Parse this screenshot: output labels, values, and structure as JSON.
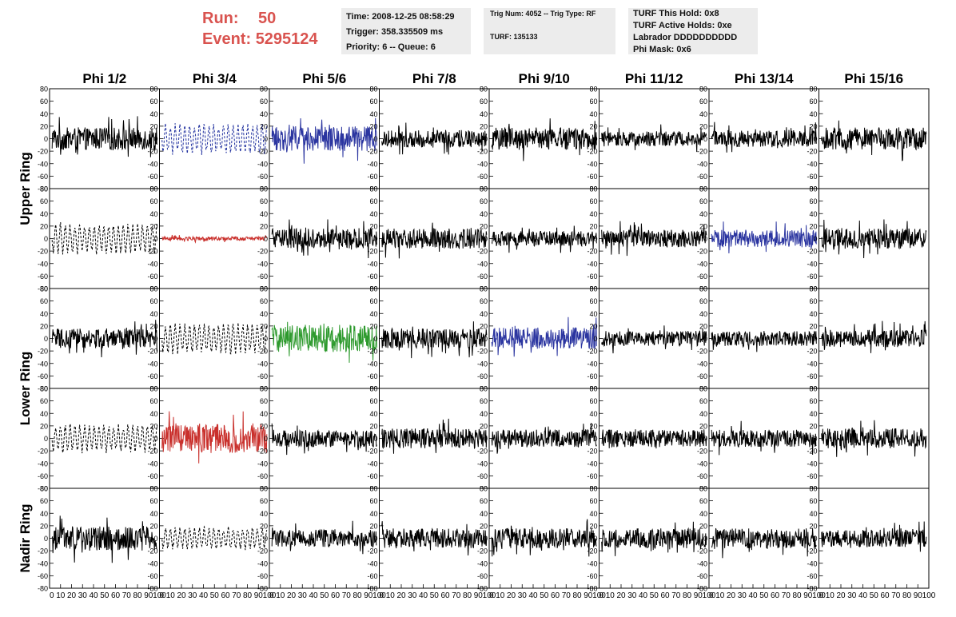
{
  "header": {
    "run_label": "Run:",
    "run_value": "50",
    "event_label": "Event:",
    "event_value": "5295124"
  },
  "info_time": {
    "time": "Time: 2008-12-25 08:58:29",
    "trigger": "Trigger: 358.335509 ms",
    "priority": "Priority: 6 -- Queue: 6"
  },
  "info_trig": {
    "trig_line": "Trig Num: 4052 -- Trig Type: RF",
    "turf_line": "TURF: 135133"
  },
  "info_turf": {
    "hold": "TURF This Hold: 0x8",
    "active": "TURF Active Holds: 0xe",
    "labrador": "Labrador DDDDDDDDDD",
    "phi_mask": "Phi Mask: 0x6"
  },
  "chart_data": {
    "type": "line",
    "columns": [
      "Phi 1/2",
      "Phi 3/4",
      "Phi 5/6",
      "Phi 7/8",
      "Phi 9/10",
      "Phi 11/12",
      "Phi 13/14",
      "Phi 15/16"
    ],
    "ring_labels": [
      "Upper Ring",
      "Lower Ring",
      "Nadir Ring"
    ],
    "rows": 5,
    "xlim": [
      0,
      100
    ],
    "ylim": [
      -80,
      80
    ],
    "y_ticks": [
      "80",
      "60",
      "40",
      "20",
      "0",
      "-20",
      "-40",
      "-60",
      "-80"
    ],
    "x_ticks": [
      "0",
      "10",
      "20",
      "30",
      "40",
      "50",
      "60",
      "70",
      "80",
      "90",
      "100"
    ],
    "series_colors": {
      "black": "#000000",
      "dashed": "#000000",
      "dashed_blue": "#1f2f9e",
      "blue": "#2b35a0",
      "red": "#c9302c",
      "green": "#2e9a2e"
    },
    "panels": [
      {
        "row": 0,
        "col": 0,
        "style": "black",
        "amplitude": 18
      },
      {
        "row": 0,
        "col": 1,
        "style": "dashed_blue",
        "amplitude": 22
      },
      {
        "row": 0,
        "col": 2,
        "style": "blue",
        "amplitude": 20
      },
      {
        "row": 0,
        "col": 3,
        "style": "black",
        "amplitude": 14
      },
      {
        "row": 0,
        "col": 4,
        "style": "black",
        "amplitude": 18
      },
      {
        "row": 0,
        "col": 5,
        "style": "black",
        "amplitude": 12
      },
      {
        "row": 0,
        "col": 6,
        "style": "black",
        "amplitude": 14
      },
      {
        "row": 0,
        "col": 7,
        "style": "black",
        "amplitude": 18
      },
      {
        "row": 1,
        "col": 0,
        "style": "dashed",
        "amplitude": 22
      },
      {
        "row": 1,
        "col": 1,
        "style": "red",
        "amplitude": 3
      },
      {
        "row": 1,
        "col": 2,
        "style": "black",
        "amplitude": 16
      },
      {
        "row": 1,
        "col": 3,
        "style": "black",
        "amplitude": 16
      },
      {
        "row": 1,
        "col": 4,
        "style": "black",
        "amplitude": 12
      },
      {
        "row": 1,
        "col": 5,
        "style": "black",
        "amplitude": 14
      },
      {
        "row": 1,
        "col": 6,
        "style": "blue",
        "amplitude": 14
      },
      {
        "row": 1,
        "col": 7,
        "style": "black",
        "amplitude": 16
      },
      {
        "row": 2,
        "col": 0,
        "style": "black",
        "amplitude": 16
      },
      {
        "row": 2,
        "col": 1,
        "style": "dashed",
        "amplitude": 22
      },
      {
        "row": 2,
        "col": 2,
        "style": "green",
        "amplitude": 22
      },
      {
        "row": 2,
        "col": 3,
        "style": "black",
        "amplitude": 16
      },
      {
        "row": 2,
        "col": 4,
        "style": "blue",
        "amplitude": 18
      },
      {
        "row": 2,
        "col": 5,
        "style": "black",
        "amplitude": 12
      },
      {
        "row": 2,
        "col": 6,
        "style": "black",
        "amplitude": 12
      },
      {
        "row": 2,
        "col": 7,
        "style": "black",
        "amplitude": 14
      },
      {
        "row": 3,
        "col": 0,
        "style": "dashed",
        "amplitude": 20
      },
      {
        "row": 3,
        "col": 1,
        "style": "red",
        "amplitude": 24
      },
      {
        "row": 3,
        "col": 2,
        "style": "black",
        "amplitude": 14
      },
      {
        "row": 3,
        "col": 3,
        "style": "black",
        "amplitude": 16
      },
      {
        "row": 3,
        "col": 4,
        "style": "black",
        "amplitude": 14
      },
      {
        "row": 3,
        "col": 5,
        "style": "black",
        "amplitude": 14
      },
      {
        "row": 3,
        "col": 6,
        "style": "black",
        "amplitude": 14
      },
      {
        "row": 3,
        "col": 7,
        "style": "black",
        "amplitude": 16
      },
      {
        "row": 4,
        "col": 0,
        "style": "black",
        "amplitude": 20
      },
      {
        "row": 4,
        "col": 1,
        "style": "dashed",
        "amplitude": 16
      },
      {
        "row": 4,
        "col": 2,
        "style": "black",
        "amplitude": 14
      },
      {
        "row": 4,
        "col": 3,
        "style": "black",
        "amplitude": 16
      },
      {
        "row": 4,
        "col": 4,
        "style": "black",
        "amplitude": 16
      },
      {
        "row": 4,
        "col": 5,
        "style": "black",
        "amplitude": 16
      },
      {
        "row": 4,
        "col": 6,
        "style": "black",
        "amplitude": 16
      },
      {
        "row": 4,
        "col": 7,
        "style": "black",
        "amplitude": 14
      }
    ]
  }
}
